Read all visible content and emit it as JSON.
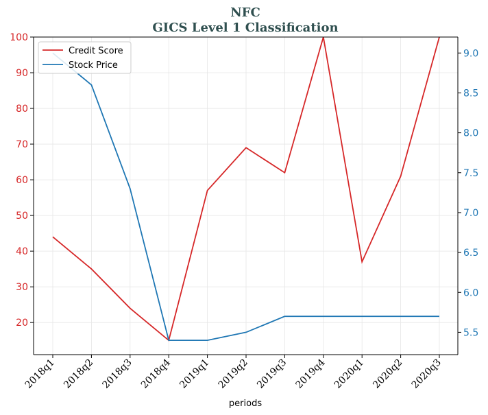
{
  "chart_data": {
    "type": "line",
    "title": "NFC",
    "subtitle": "GICS Level 1 Classification",
    "xlabel": "periods",
    "categories": [
      "2018q1",
      "2018q2",
      "2018q3",
      "2018q4",
      "2019q1",
      "2019q2",
      "2019q3",
      "2019q4",
      "2020q1",
      "2020q2",
      "2020q3"
    ],
    "left_axis": {
      "ylim": [
        11,
        100
      ],
      "ticks": [
        20,
        30,
        40,
        50,
        60,
        70,
        80,
        90,
        100
      ]
    },
    "right_axis": {
      "ylim": [
        5.22,
        9.2
      ],
      "ticks": [
        5.5,
        6.0,
        6.5,
        7.0,
        7.5,
        8.0,
        8.5,
        9.0
      ]
    },
    "grid": true,
    "legend_position": "top-left",
    "series": [
      {
        "name": "Credit Score",
        "axis": "left",
        "color": "#d62728",
        "values": [
          44,
          35,
          24,
          15,
          57,
          69,
          62,
          100,
          37,
          61,
          100
        ]
      },
      {
        "name": "Stock Price",
        "axis": "right",
        "color": "#1f77b4",
        "values": [
          9.0,
          8.6,
          7.3,
          5.4,
          5.4,
          5.5,
          5.7,
          5.7,
          5.7,
          5.7,
          5.7
        ]
      }
    ]
  }
}
